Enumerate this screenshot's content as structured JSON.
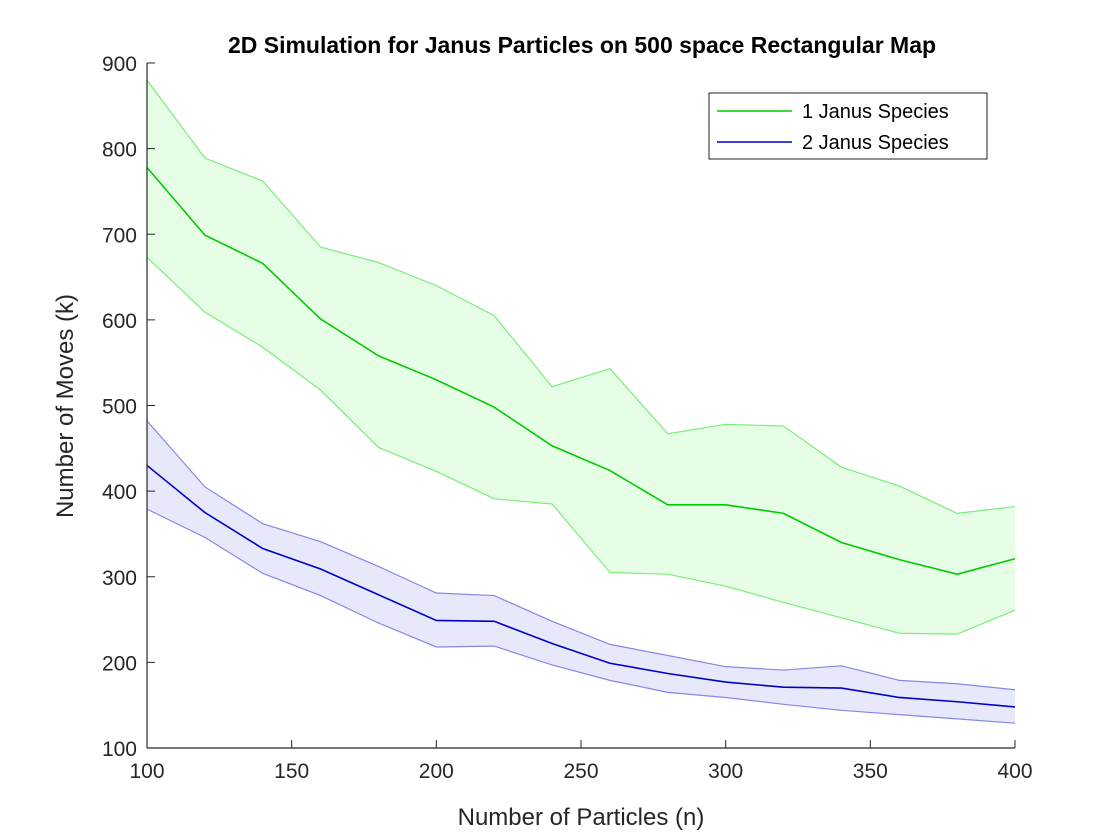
{
  "chart_data": {
    "type": "area",
    "title": "2D Simulation for Janus Particles on 500 space Rectangular Map",
    "xlabel": "Number of Particles (n)",
    "ylabel": "Number of Moves (k)",
    "xlim": [
      100,
      400
    ],
    "ylim": [
      100,
      900
    ],
    "xticks": [
      100,
      150,
      200,
      250,
      300,
      350,
      400
    ],
    "yticks": [
      100,
      200,
      300,
      400,
      500,
      600,
      700,
      800,
      900
    ],
    "grid": false,
    "legend_position": "top-right",
    "x": [
      100,
      120,
      140,
      160,
      180,
      200,
      220,
      240,
      260,
      280,
      300,
      320,
      340,
      360,
      380,
      400
    ],
    "series": [
      {
        "name": "1 Janus Species",
        "color": "#00cc00",
        "fill": "#e6fde6",
        "band_edge_color": "#7aed7a",
        "values": [
          778,
          699,
          666,
          601,
          558,
          530,
          498,
          453,
          424,
          384,
          384,
          374,
          340,
          320,
          303,
          321
        ],
        "upper": [
          880,
          789,
          762,
          685,
          667,
          640,
          605,
          522,
          543,
          467,
          478,
          476,
          428,
          406,
          374,
          382
        ],
        "lower": [
          673,
          609,
          568,
          518,
          451,
          423,
          391,
          385,
          305,
          303,
          289,
          270,
          252,
          234,
          233,
          261
        ]
      },
      {
        "name": "2 Janus Species",
        "color": "#0000c8",
        "fill": "#e8e8fb",
        "band_edge_color": "#8686e8",
        "values": [
          430,
          375,
          333,
          309,
          279,
          249,
          248,
          222,
          199,
          187,
          177,
          171,
          170,
          159,
          154,
          148
        ],
        "upper": [
          482,
          405,
          362,
          341,
          312,
          281,
          278,
          248,
          221,
          208,
          195,
          191,
          196,
          179,
          175,
          168
        ],
        "lower": [
          379,
          346,
          304,
          278,
          246,
          218,
          219,
          197,
          179,
          165,
          159,
          151,
          144,
          139,
          134,
          129
        ]
      }
    ]
  }
}
